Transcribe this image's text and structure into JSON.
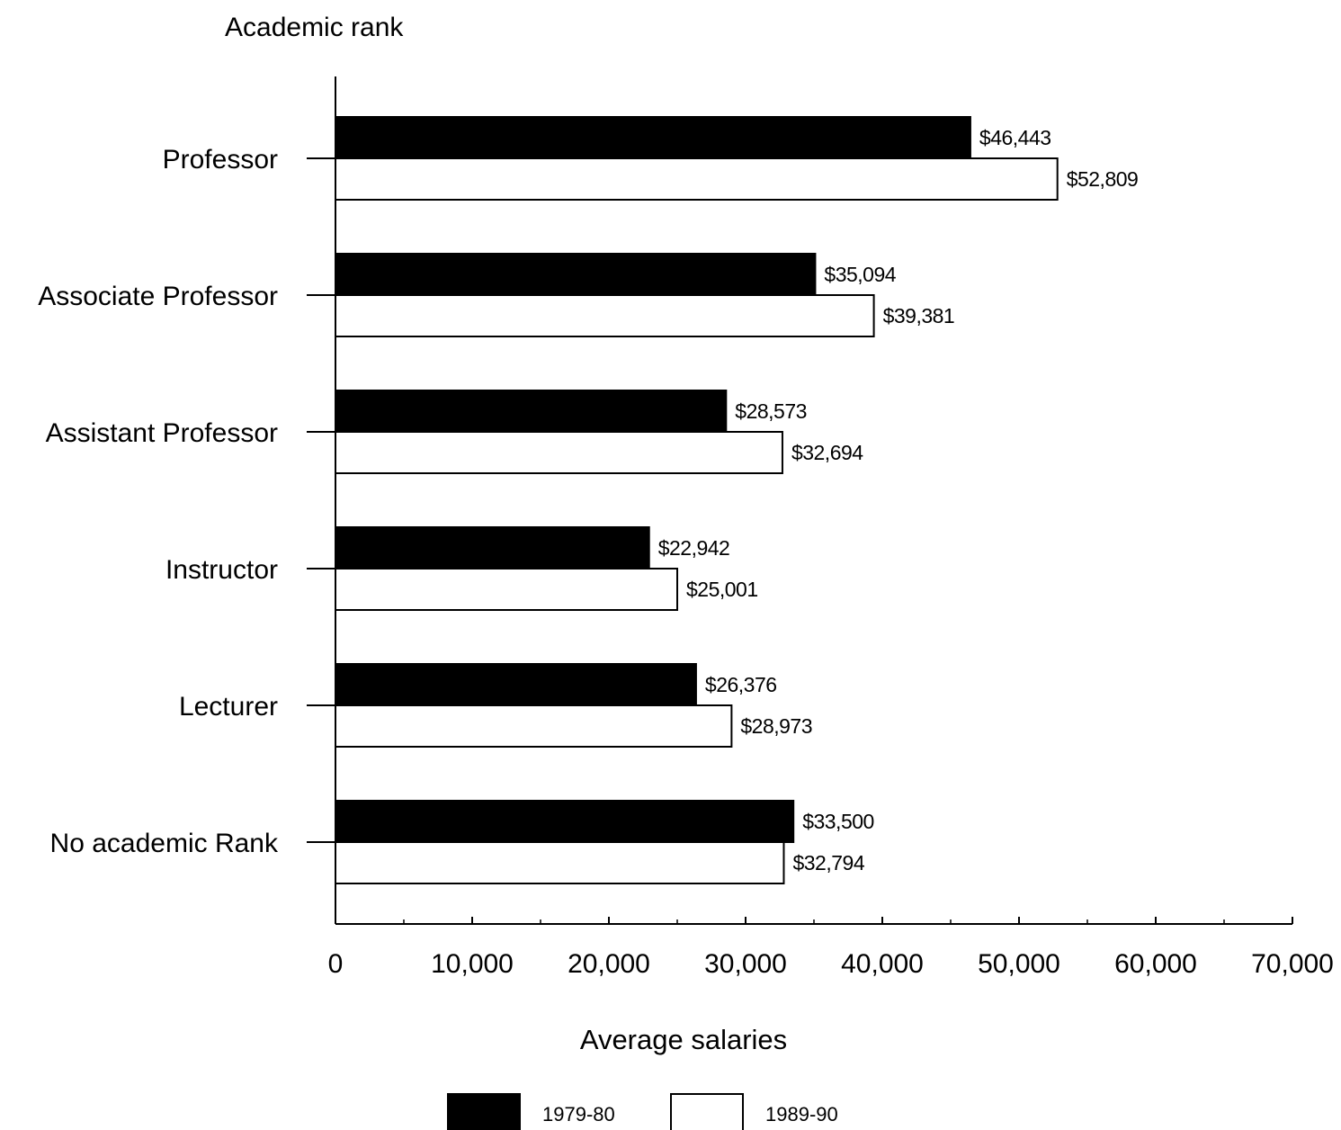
{
  "chart_data": {
    "type": "bar",
    "orientation": "horizontal",
    "y_axis_title": "Academic rank",
    "xlabel": "Average salaries",
    "categories": [
      "Professor",
      "Associate Professor",
      "Assistant Professor",
      "Instructor",
      "Lecturer",
      "No academic Rank"
    ],
    "series": [
      {
        "name": "1979-80",
        "color": "#000000",
        "values": [
          46443,
          35094,
          28573,
          22942,
          26376,
          33500
        ],
        "labels": [
          "$46,443",
          "$35,094",
          "$28,573",
          "$22,942",
          "$26,376",
          "$33,500"
        ]
      },
      {
        "name": "1989-90",
        "color": "#ffffff",
        "values": [
          52809,
          39381,
          32694,
          25001,
          28973,
          32794
        ],
        "labels": [
          "$52,809",
          "$39,381",
          "$32,694",
          "$25,001",
          "$28,973",
          "$32,794"
        ]
      }
    ],
    "xlim": [
      0,
      70000
    ],
    "xticks": [
      0,
      10000,
      20000,
      30000,
      40000,
      50000,
      60000,
      70000
    ],
    "xtick_labels": [
      "0",
      "10,000",
      "20,000",
      "30,000",
      "40,000",
      "50,000",
      "60,000",
      "70,000"
    ],
    "grid": false,
    "legend_position": "bottom-center"
  }
}
